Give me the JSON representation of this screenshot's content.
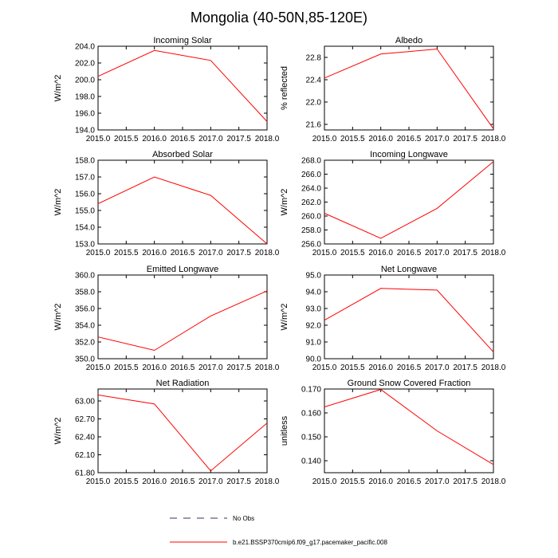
{
  "figure": {
    "title": "Mongolia (40-50N,85-120E)"
  },
  "legend": {
    "items": [
      {
        "label": "No Obs",
        "color": "#333366",
        "dashed": true
      },
      {
        "label": "b.e21.BSSP370cmip6.f09_g17.pacemaker_pacific.008",
        "color": "#ff0000",
        "dashed": false
      }
    ]
  },
  "chart_data": [
    {
      "type": "line",
      "title": "Incoming Solar",
      "xlabel": "",
      "ylabel": "W/m^2",
      "x": [
        2015,
        2016,
        2017,
        2018
      ],
      "values": [
        200.4,
        203.5,
        202.3,
        195.0
      ],
      "xlim": [
        2015,
        2018
      ],
      "ylim": [
        194,
        204
      ],
      "xticks": [
        2015,
        2015.5,
        2016,
        2016.5,
        2017,
        2017.5,
        2018
      ],
      "xtick_labels": [
        "2015.0",
        "2015.5",
        "2016.0",
        "2016.5",
        "2017.0",
        "2017.5",
        "2018.0"
      ],
      "yticks": [
        194,
        196,
        198,
        200,
        202,
        204
      ],
      "ytick_labels": [
        "194.0",
        "196.0",
        "198.0",
        "200.0",
        "202.0",
        "204.0"
      ],
      "series_color": "#ff0000"
    },
    {
      "type": "line",
      "title": "Albedo",
      "xlabel": "",
      "ylabel": "% reflected",
      "x": [
        2015,
        2016,
        2017,
        2018
      ],
      "values": [
        22.43,
        22.86,
        22.95,
        21.52
      ],
      "xlim": [
        2015,
        2018
      ],
      "ylim": [
        21.5,
        23.0
      ],
      "xticks": [
        2015,
        2015.5,
        2016,
        2016.5,
        2017,
        2017.5,
        2018
      ],
      "xtick_labels": [
        "2015.0",
        "2015.5",
        "2016.0",
        "2016.5",
        "2017.0",
        "2017.5",
        "2018.0"
      ],
      "yticks": [
        21.6,
        22.0,
        22.4,
        22.8
      ],
      "ytick_labels": [
        "21.6",
        "22.0",
        "22.4",
        "22.8"
      ],
      "series_color": "#ff0000"
    },
    {
      "type": "line",
      "title": "Absorbed Solar",
      "xlabel": "",
      "ylabel": "W/m^2",
      "x": [
        2015,
        2016,
        2017,
        2018
      ],
      "values": [
        155.4,
        157.0,
        155.9,
        153.0
      ],
      "xlim": [
        2015,
        2018
      ],
      "ylim": [
        153,
        158
      ],
      "xticks": [
        2015,
        2015.5,
        2016,
        2016.5,
        2017,
        2017.5,
        2018
      ],
      "xtick_labels": [
        "2015.0",
        "2015.5",
        "2016.0",
        "2016.5",
        "2017.0",
        "2017.5",
        "2018.0"
      ],
      "yticks": [
        153,
        154,
        155,
        156,
        157,
        158
      ],
      "ytick_labels": [
        "153.0",
        "154.0",
        "155.0",
        "156.0",
        "157.0",
        "158.0"
      ],
      "series_color": "#ff0000"
    },
    {
      "type": "line",
      "title": "Incoming Longwave",
      "xlabel": "",
      "ylabel": "W/m^2",
      "x": [
        2015,
        2016,
        2017,
        2018
      ],
      "values": [
        260.4,
        256.8,
        261.1,
        267.8
      ],
      "xlim": [
        2015,
        2018
      ],
      "ylim": [
        256,
        268
      ],
      "xticks": [
        2015,
        2015.5,
        2016,
        2016.5,
        2017,
        2017.5,
        2018
      ],
      "xtick_labels": [
        "2015.0",
        "2015.5",
        "2016.0",
        "2016.5",
        "2017.0",
        "2017.5",
        "2018.0"
      ],
      "yticks": [
        256,
        258,
        260,
        262,
        264,
        266,
        268
      ],
      "ytick_labels": [
        "256.0",
        "258.0",
        "260.0",
        "262.0",
        "264.0",
        "266.0",
        "268.0"
      ],
      "series_color": "#ff0000"
    },
    {
      "type": "line",
      "title": "Emitted Longwave",
      "xlabel": "",
      "ylabel": "W/m^2",
      "x": [
        2015,
        2016,
        2017,
        2018
      ],
      "values": [
        352.6,
        351.0,
        355.1,
        358.1
      ],
      "xlim": [
        2015,
        2018
      ],
      "ylim": [
        350,
        360
      ],
      "xticks": [
        2015,
        2015.5,
        2016,
        2016.5,
        2017,
        2017.5,
        2018
      ],
      "xtick_labels": [
        "2015.0",
        "2015.5",
        "2016.0",
        "2016.5",
        "2017.0",
        "2017.5",
        "2018.0"
      ],
      "yticks": [
        350,
        352,
        354,
        356,
        358,
        360
      ],
      "ytick_labels": [
        "350.0",
        "352.0",
        "354.0",
        "356.0",
        "358.0",
        "360.0"
      ],
      "series_color": "#ff0000"
    },
    {
      "type": "line",
      "title": "Net Longwave",
      "xlabel": "",
      "ylabel": "W/m^2",
      "x": [
        2015,
        2016,
        2017,
        2018
      ],
      "values": [
        92.3,
        94.2,
        94.1,
        90.4
      ],
      "xlim": [
        2015,
        2018
      ],
      "ylim": [
        90,
        95
      ],
      "xticks": [
        2015,
        2015.5,
        2016,
        2016.5,
        2017,
        2017.5,
        2018
      ],
      "xtick_labels": [
        "2015.0",
        "2015.5",
        "2016.0",
        "2016.5",
        "2017.0",
        "2017.5",
        "2018.0"
      ],
      "yticks": [
        90,
        91,
        92,
        93,
        94,
        95
      ],
      "ytick_labels": [
        "90.0",
        "91.0",
        "92.0",
        "93.0",
        "94.0",
        "95.0"
      ],
      "series_color": "#ff0000"
    },
    {
      "type": "line",
      "title": "Net Radiation",
      "xlabel": "",
      "ylabel": "W/m^2",
      "x": [
        2015,
        2016,
        2017,
        2018
      ],
      "values": [
        63.1,
        62.95,
        61.83,
        62.63
      ],
      "xlim": [
        2015,
        2018
      ],
      "ylim": [
        61.8,
        63.2
      ],
      "xticks": [
        2015,
        2015.5,
        2016,
        2016.5,
        2017,
        2017.5,
        2018
      ],
      "xtick_labels": [
        "2015.0",
        "2015.5",
        "2016.0",
        "2016.5",
        "2017.0",
        "2017.5",
        "2018.0"
      ],
      "yticks": [
        61.8,
        62.1,
        62.4,
        62.7,
        63.0
      ],
      "ytick_labels": [
        "61.80",
        "62.10",
        "62.40",
        "62.70",
        "63.00"
      ],
      "series_color": "#ff0000"
    },
    {
      "type": "line",
      "title": "Ground Snow Covered Fraction",
      "xlabel": "",
      "ylabel": "unitless",
      "x": [
        2015,
        2016,
        2017,
        2018
      ],
      "values": [
        0.1625,
        0.1698,
        0.1525,
        0.1384
      ],
      "xlim": [
        2015,
        2018
      ],
      "ylim": [
        0.135,
        0.17
      ],
      "xticks": [
        2015,
        2015.5,
        2016,
        2016.5,
        2017,
        2017.5,
        2018
      ],
      "xtick_labels": [
        "2015.0",
        "2015.5",
        "2016.0",
        "2016.5",
        "2017.0",
        "2017.5",
        "2018.0"
      ],
      "yticks": [
        0.14,
        0.15,
        0.16,
        0.17
      ],
      "ytick_labels": [
        "0.140",
        "0.150",
        "0.160",
        "0.170"
      ],
      "series_color": "#ff0000"
    }
  ]
}
